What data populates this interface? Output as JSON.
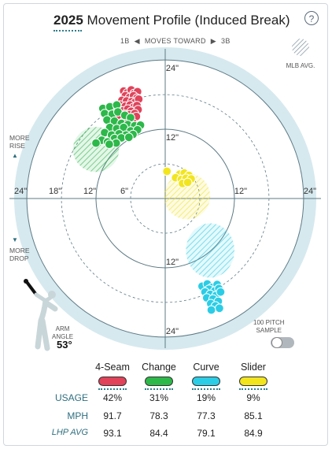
{
  "header": {
    "title_year": "2025",
    "title_rest": " Movement Profile (Induced Break)",
    "help_label": "?"
  },
  "direction": {
    "left": "1B",
    "middle": "MOVES TOWARD",
    "right": "3B"
  },
  "mlb_legend_label": "MLB AVG.",
  "side_labels": {
    "more_rise": [
      "MORE",
      "RISE"
    ],
    "more_drop": [
      "MORE",
      "DROP"
    ]
  },
  "arm": {
    "label_line1": "ARM",
    "label_line2": "ANGLE",
    "value": "53°"
  },
  "sample": {
    "label_line1": "100 PITCH",
    "label_line2": "SAMPLE"
  },
  "colors": {
    "four_seam": "#e0435a",
    "change": "#2db84a",
    "curve": "#2bcde6",
    "slider": "#f2e51e",
    "ring_bg": "#d6e9ef",
    "grid": "#5d7a85"
  },
  "chart_data": {
    "type": "scatter",
    "title": "2025 Movement Profile (Induced Break)",
    "axis_ticks": {
      "horizontal": [
        "24\"",
        "18\"",
        "12\"",
        "6\"",
        "12\"",
        "24\""
      ],
      "vertical_top": [
        "24\"",
        "12\""
      ],
      "vertical_bottom": [
        "12\"",
        "24\""
      ]
    },
    "rings_inches": [
      6,
      12,
      18,
      24
    ],
    "series": [
      {
        "name": "4-Seam",
        "points": [
          [
            -7.2,
            18.6
          ],
          [
            -6.6,
            18.3
          ],
          [
            -5.9,
            18.8
          ],
          [
            -5.4,
            18.2
          ],
          [
            -4.8,
            18.5
          ],
          [
            -6.9,
            17.8
          ],
          [
            -6.2,
            17.5
          ],
          [
            -5.5,
            17.8
          ],
          [
            -4.9,
            17.4
          ],
          [
            -7.5,
            17.0
          ],
          [
            -6.7,
            16.9
          ],
          [
            -5.8,
            16.8
          ],
          [
            -5.2,
            16.7
          ],
          [
            -4.6,
            17.2
          ],
          [
            -7.8,
            16.2
          ],
          [
            -6.9,
            16.0
          ],
          [
            -6.1,
            16.2
          ],
          [
            -5.5,
            15.8
          ],
          [
            -4.9,
            16.1
          ],
          [
            -7.3,
            15.2
          ],
          [
            -6.5,
            15.5
          ],
          [
            -5.9,
            15.1
          ],
          [
            -4.7,
            15.4
          ],
          [
            -7.0,
            14.6
          ],
          [
            -6.2,
            14.5
          ],
          [
            -5.3,
            14.7
          ],
          [
            -7.8,
            14.2
          ],
          [
            -6.8,
            13.8
          ],
          [
            -5.8,
            14.0
          ],
          [
            -5.0,
            14.2
          ],
          [
            -7.4,
            13.2
          ],
          [
            -6.4,
            13.4
          ],
          [
            -5.6,
            13.1
          ]
        ]
      },
      {
        "name": "Change",
        "points": [
          [
            -10.8,
            15.6
          ],
          [
            -9.6,
            15.9
          ],
          [
            -8.4,
            16.2
          ],
          [
            -10.5,
            14.7
          ],
          [
            -9.2,
            14.6
          ],
          [
            -8.2,
            15.0
          ],
          [
            -7.0,
            14.4
          ],
          [
            -6.0,
            14.0
          ],
          [
            -10.1,
            13.6
          ],
          [
            -8.8,
            13.4
          ],
          [
            -7.6,
            13.0
          ],
          [
            -6.5,
            12.8
          ],
          [
            -5.3,
            12.6
          ],
          [
            -4.3,
            12.7
          ],
          [
            -9.6,
            12.3
          ],
          [
            -8.4,
            12.1
          ],
          [
            -7.2,
            12.3
          ],
          [
            -6.0,
            11.7
          ],
          [
            -4.8,
            11.9
          ],
          [
            -10.5,
            11.4
          ],
          [
            -9.3,
            11.0
          ],
          [
            -8.0,
            11.2
          ],
          [
            -6.8,
            11.0
          ],
          [
            -5.6,
            11.1
          ],
          [
            -8.8,
            10.4
          ],
          [
            -7.6,
            10.5
          ],
          [
            -6.3,
            10.6
          ],
          [
            -11.0,
            10.1
          ],
          [
            -10.0,
            9.8
          ],
          [
            -8.5,
            9.6
          ],
          [
            -12.0,
            9.6
          ],
          [
            -9.7,
            9.4
          ]
        ]
      },
      {
        "name": "Curve",
        "points": [
          [
            6.4,
            -15.2
          ],
          [
            7.3,
            -14.8
          ],
          [
            8.1,
            -15.4
          ],
          [
            9.0,
            -14.9
          ],
          [
            7.6,
            -15.7
          ],
          [
            8.6,
            -16.0
          ],
          [
            9.3,
            -15.6
          ],
          [
            6.9,
            -16.2
          ],
          [
            7.8,
            -16.6
          ],
          [
            8.8,
            -16.8
          ],
          [
            9.6,
            -16.2
          ],
          [
            7.2,
            -17.2
          ],
          [
            8.3,
            -17.4
          ],
          [
            9.2,
            -17.8
          ],
          [
            7.9,
            -18.2
          ],
          [
            8.7,
            -18.6
          ],
          [
            9.4,
            -19.0
          ],
          [
            8.0,
            -19.3
          ]
        ]
      },
      {
        "name": "Slider",
        "points": [
          [
            0.3,
            4.7
          ],
          [
            2.5,
            4.2
          ],
          [
            3.3,
            4.4
          ],
          [
            4.1,
            4.0
          ],
          [
            1.8,
            3.6
          ],
          [
            2.8,
            3.3
          ],
          [
            3.6,
            3.5
          ],
          [
            4.5,
            3.4
          ],
          [
            3.0,
            2.6
          ],
          [
            3.9,
            2.8
          ]
        ]
      }
    ],
    "mlb_avg_regions": [
      {
        "name": "4-Seam",
        "center": [
          -7.0,
          15.5
        ],
        "rx": 2.0,
        "ry": 1.6
      },
      {
        "name": "Change",
        "center": [
          -12.0,
          8.5
        ],
        "rx": 4.0,
        "ry": 3.9
      },
      {
        "name": "Curve",
        "center": [
          7.8,
          -9.0
        ],
        "rx": 4.2,
        "ry": 4.7
      },
      {
        "name": "Slider",
        "center": [
          3.8,
          0.4
        ],
        "rx": 4.0,
        "ry": 4.0
      }
    ],
    "legend_placement": "bottom"
  },
  "table": {
    "pitches": [
      {
        "name": "4-Seam",
        "usage": "42%",
        "mph": "91.7",
        "lhp_avg": "93.1"
      },
      {
        "name": "Change",
        "usage": "31%",
        "mph": "78.3",
        "lhp_avg": "84.4"
      },
      {
        "name": "Curve",
        "usage": "19%",
        "mph": "77.3",
        "lhp_avg": "79.1"
      },
      {
        "name": "Slider",
        "usage": "9%",
        "mph": "85.1",
        "lhp_avg": "84.9"
      }
    ],
    "row_labels": {
      "usage": "USAGE",
      "mph": "MPH",
      "lhp_avg": "LHP AVG"
    }
  }
}
